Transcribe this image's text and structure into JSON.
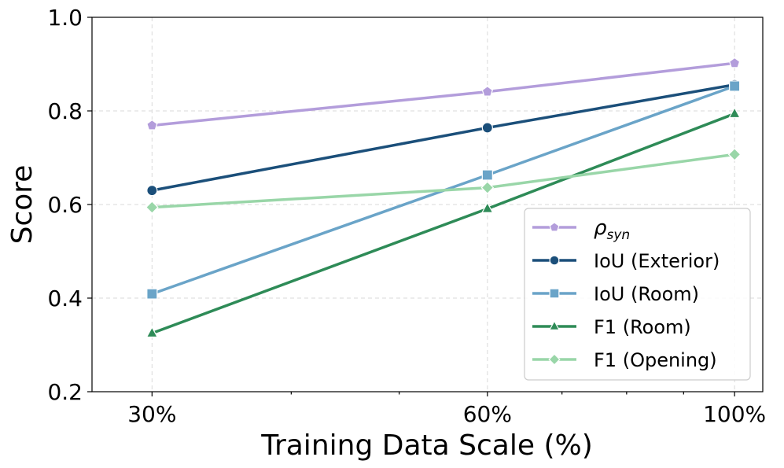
{
  "chart_data": {
    "type": "line",
    "title": "",
    "xlabel": "Training Data Scale (%)",
    "ylabel": "Score",
    "x": [
      30,
      60,
      100
    ],
    "x_scale": "log",
    "xlim": [
      26.5,
      106
    ],
    "ylim": [
      0.2,
      1.0
    ],
    "yticks": [
      0.2,
      0.4,
      0.6,
      0.8,
      1.0
    ],
    "ytick_labels": [
      "0.2",
      "0.4",
      "0.6",
      "0.8",
      "1.0"
    ],
    "xtick_labels": [
      "30%",
      "60%",
      "100%"
    ],
    "grid": true,
    "legend_position": "lower-right",
    "series": [
      {
        "name": "ρsyn",
        "name_base": "ρ",
        "name_sub": "syn",
        "values": [
          0.769,
          0.841,
          0.902
        ],
        "color": "#b39ddb",
        "marker": "pentagon"
      },
      {
        "name": "IoU (Exterior)",
        "values": [
          0.63,
          0.764,
          0.856
        ],
        "color": "#1b4f7a",
        "marker": "circle"
      },
      {
        "name": "IoU (Room)",
        "values": [
          0.409,
          0.663,
          0.853
        ],
        "color": "#6aa4c8",
        "marker": "square"
      },
      {
        "name": "F1 (Room)",
        "values": [
          0.325,
          0.591,
          0.794
        ],
        "color": "#2e8b57",
        "marker": "triangle"
      },
      {
        "name": "F1 (Opening)",
        "values": [
          0.594,
          0.636,
          0.707
        ],
        "color": "#99d6a8",
        "marker": "diamond"
      }
    ]
  }
}
